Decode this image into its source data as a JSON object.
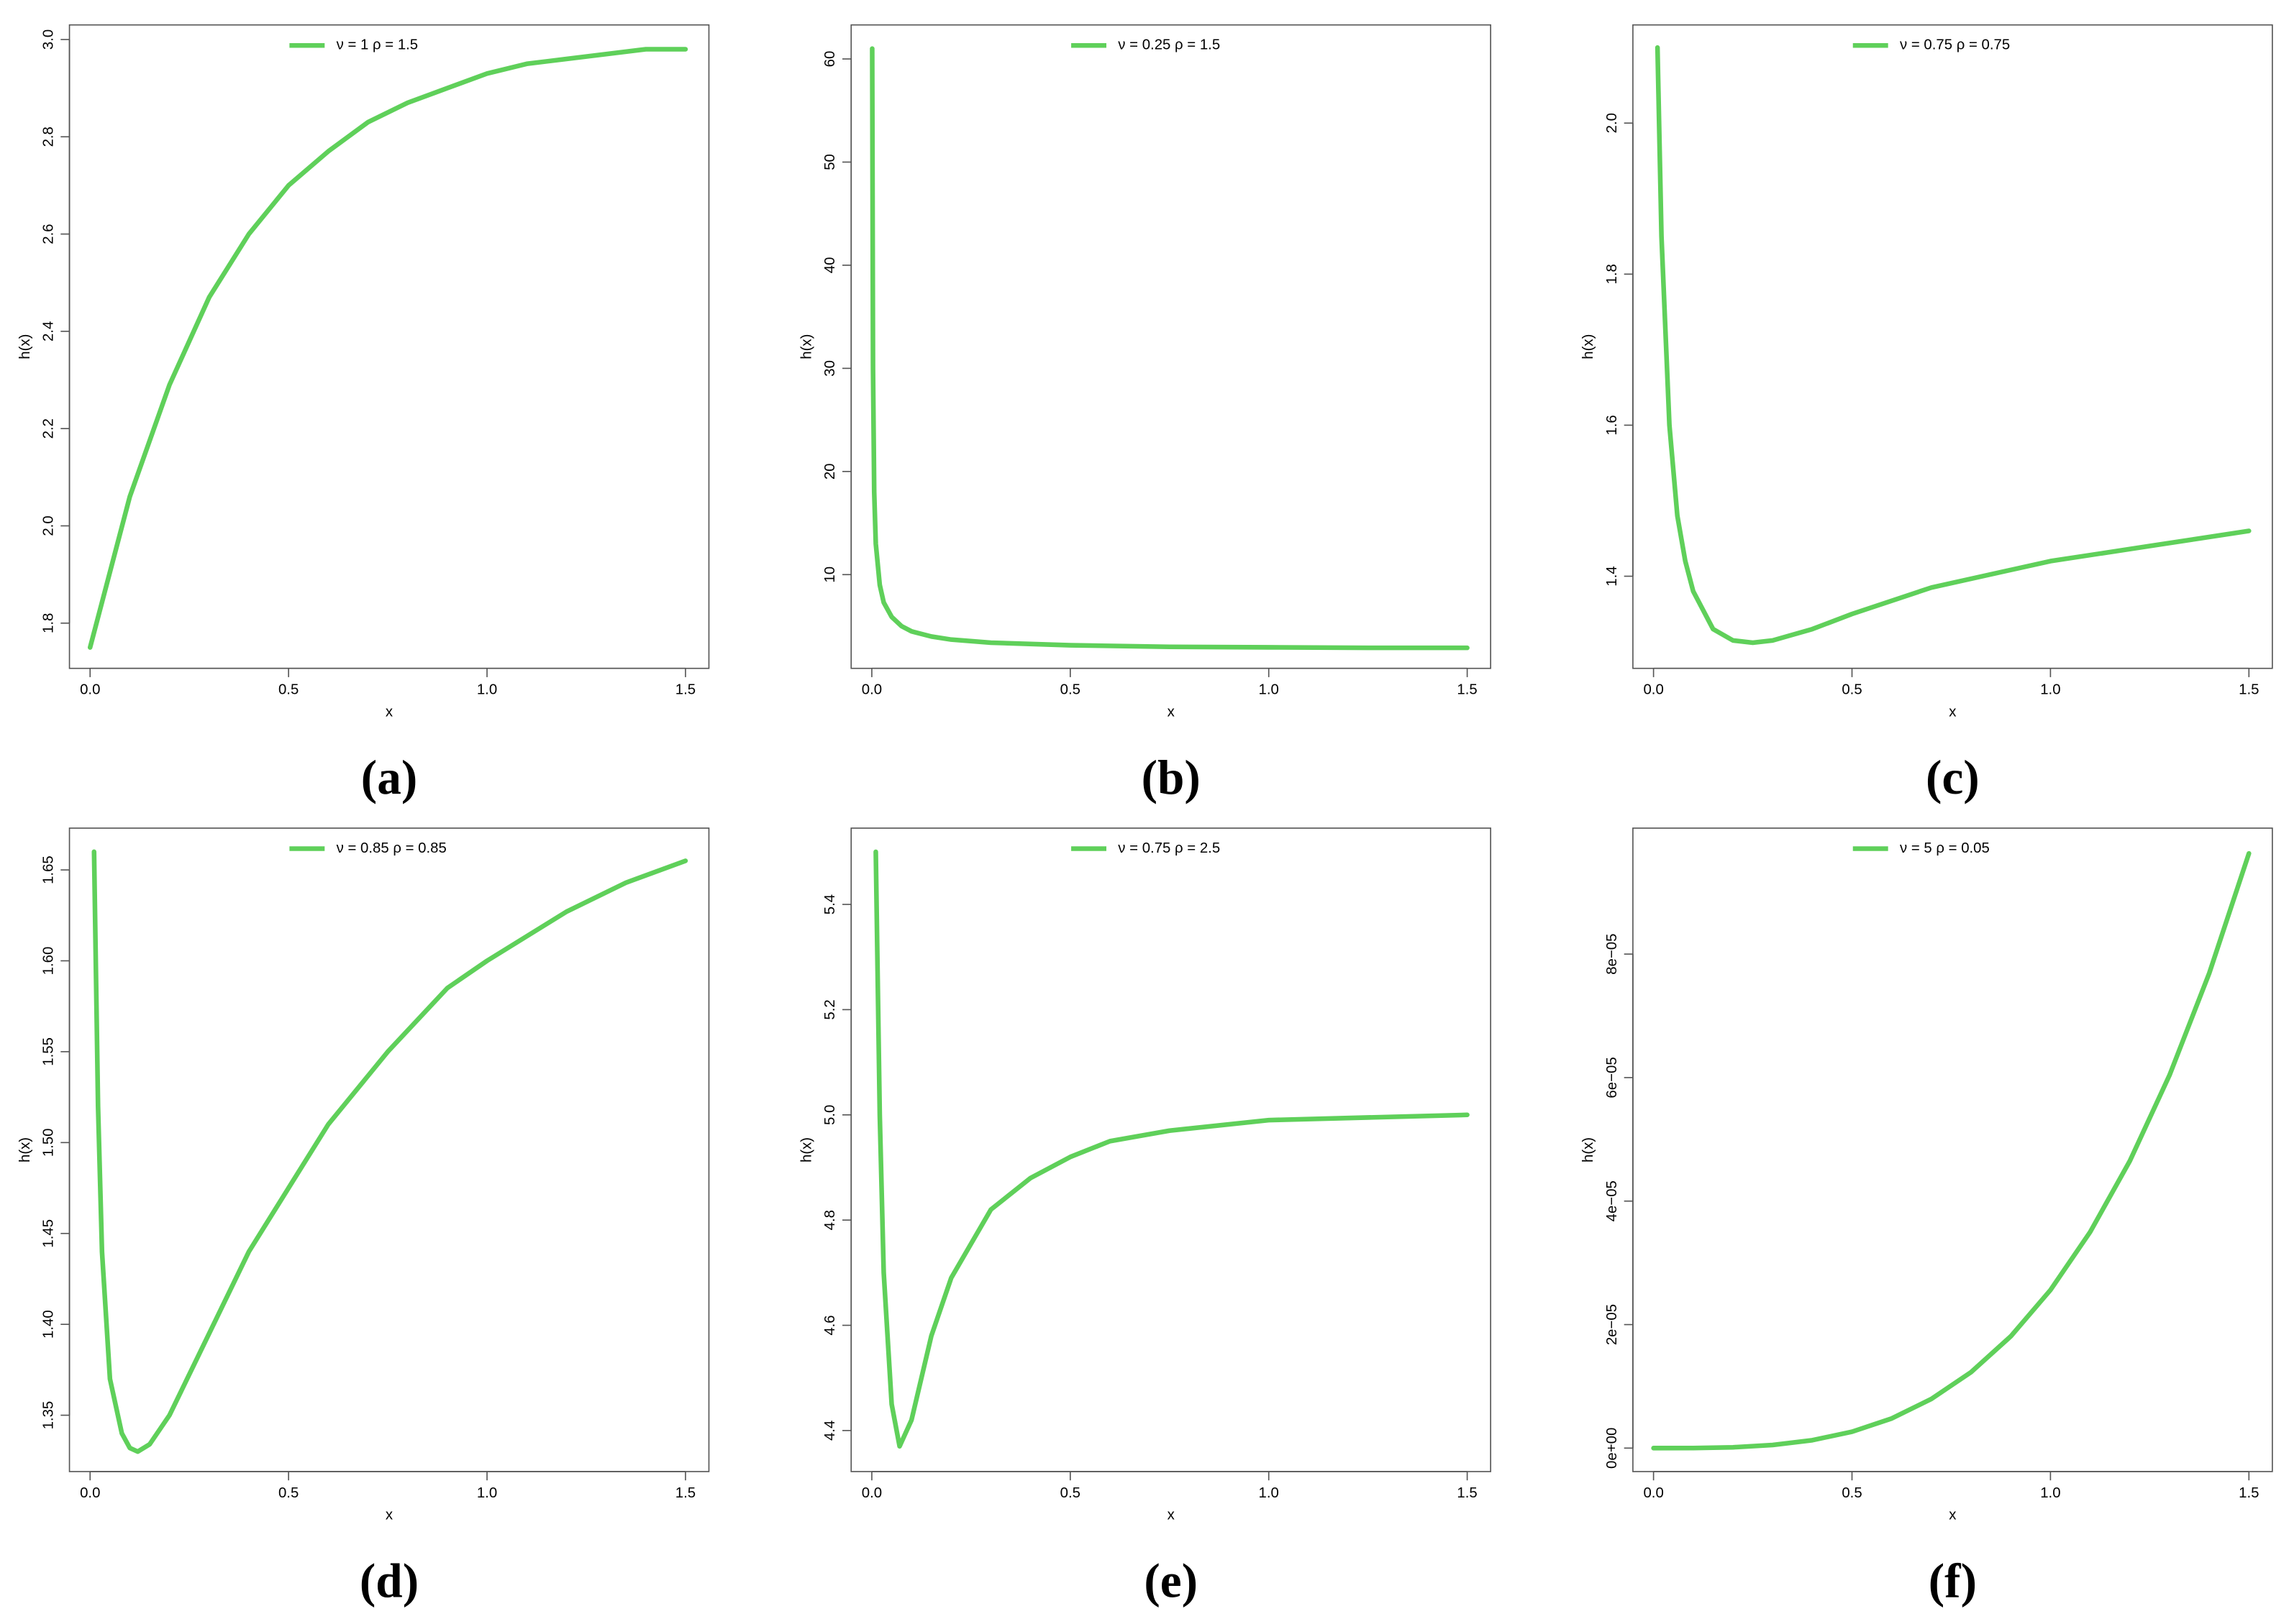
{
  "chart_data": [
    {
      "type": "line",
      "panel_label": "(a)",
      "xlabel": "x",
      "ylabel": "h(x)",
      "x": [
        0,
        0.1,
        0.2,
        0.3,
        0.4,
        0.5,
        0.6,
        0.7,
        0.8,
        0.9,
        1.0,
        1.1,
        1.2,
        1.3,
        1.4,
        1.5
      ],
      "series": [
        {
          "name": "ν = 1  ρ = 1.5",
          "color": "#5fd05a",
          "values": [
            1.75,
            2.06,
            2.29,
            2.47,
            2.6,
            2.7,
            2.77,
            2.83,
            2.87,
            2.9,
            2.93,
            2.95,
            2.96,
            2.97,
            2.98,
            2.98
          ]
        }
      ],
      "xlim": [
        -0.052,
        1.559
      ],
      "ylim": [
        1.707,
        3.03
      ],
      "xticks": [
        {
          "value": 0,
          "label": "0.0"
        },
        0.5,
        {
          "value": 1,
          "label": "1.0"
        },
        1.5
      ],
      "yticks": [
        1.8,
        {
          "value": 2,
          "label": "2.0"
        },
        2.2,
        2.4,
        2.6,
        2.8,
        {
          "value": 3,
          "label": "3.0"
        }
      ]
    },
    {
      "type": "line",
      "panel_label": "(b)",
      "xlabel": "x",
      "ylabel": "h(x)",
      "x": [
        0.001,
        0.003,
        0.006,
        0.01,
        0.02,
        0.03,
        0.05,
        0.075,
        0.1,
        0.15,
        0.2,
        0.3,
        0.5,
        0.75,
        1.0,
        1.25,
        1.5
      ],
      "series": [
        {
          "name": "ν = 0.25  ρ = 1.5",
          "color": "#5fd05a",
          "values": [
            61,
            30,
            18,
            13,
            9,
            7.3,
            5.9,
            5.0,
            4.5,
            4.0,
            3.7,
            3.4,
            3.15,
            3.0,
            2.95,
            2.9,
            2.9
          ]
        }
      ],
      "xlim": [
        -0.052,
        1.559
      ],
      "ylim": [
        0.91,
        63.3
      ],
      "xticks": [
        {
          "value": 0,
          "label": "0.0"
        },
        0.5,
        {
          "value": 1,
          "label": "1.0"
        },
        1.5
      ],
      "yticks": [
        10,
        20,
        30,
        40,
        50,
        60
      ]
    },
    {
      "type": "line",
      "panel_label": "(c)",
      "xlabel": "x",
      "ylabel": "h(x)",
      "x": [
        0.01,
        0.02,
        0.04,
        0.06,
        0.08,
        0.1,
        0.15,
        0.2,
        0.25,
        0.3,
        0.4,
        0.5,
        0.7,
        1.0,
        1.25,
        1.5
      ],
      "series": [
        {
          "name": "ν = 0.75  ρ = 0.75",
          "color": "#5fd05a",
          "values": [
            2.1,
            1.85,
            1.6,
            1.48,
            1.42,
            1.38,
            1.33,
            1.315,
            1.312,
            1.315,
            1.33,
            1.35,
            1.385,
            1.42,
            1.44,
            1.46
          ]
        }
      ],
      "xlim": [
        -0.052,
        1.559
      ],
      "ylim": [
        1.278,
        2.13
      ],
      "xticks": [
        {
          "value": 0,
          "label": "0.0"
        },
        0.5,
        {
          "value": 1,
          "label": "1.0"
        },
        1.5
      ],
      "yticks": [
        1.4,
        1.6,
        1.8,
        {
          "value": 2,
          "label": "2.0"
        }
      ]
    },
    {
      "type": "line",
      "panel_label": "(d)",
      "xlabel": "x",
      "ylabel": "h(x)",
      "x": [
        0.01,
        0.02,
        0.03,
        0.05,
        0.08,
        0.1,
        0.12,
        0.15,
        0.2,
        0.3,
        0.4,
        0.5,
        0.6,
        0.75,
        0.9,
        1.0,
        1.2,
        1.35,
        1.5
      ],
      "series": [
        {
          "name": "ν = 0.85  ρ = 0.85",
          "color": "#5fd05a",
          "values": [
            1.66,
            1.52,
            1.44,
            1.37,
            1.34,
            1.332,
            1.33,
            1.334,
            1.35,
            1.395,
            1.44,
            1.475,
            1.51,
            1.55,
            1.585,
            1.6,
            1.627,
            1.643,
            1.655
          ]
        }
      ],
      "xlim": [
        -0.052,
        1.559
      ],
      "ylim": [
        1.319,
        1.673
      ],
      "xticks": [
        {
          "value": 0,
          "label": "0.0"
        },
        0.5,
        {
          "value": 1,
          "label": "1.0"
        },
        1.5
      ],
      "yticks": [
        1.35,
        {
          "value": 1.4,
          "label": "1.40"
        },
        1.45,
        {
          "value": 1.5,
          "label": "1.50"
        },
        1.55,
        {
          "value": 1.6,
          "label": "1.60"
        },
        1.65
      ]
    },
    {
      "type": "line",
      "panel_label": "(e)",
      "xlabel": "x",
      "ylabel": "h(x)",
      "x": [
        0.01,
        0.02,
        0.03,
        0.05,
        0.07,
        0.1,
        0.15,
        0.2,
        0.3,
        0.4,
        0.5,
        0.6,
        0.75,
        1.0,
        1.25,
        1.5
      ],
      "series": [
        {
          "name": "ν = 0.75  ρ = 2.5",
          "color": "#5fd05a",
          "values": [
            5.5,
            5.0,
            4.7,
            4.45,
            4.37,
            4.42,
            4.58,
            4.69,
            4.82,
            4.88,
            4.92,
            4.95,
            4.97,
            4.99,
            4.995,
            5.0
          ]
        }
      ],
      "xlim": [
        -0.052,
        1.559
      ],
      "ylim": [
        4.322,
        5.545
      ],
      "xticks": [
        {
          "value": 0,
          "label": "0.0"
        },
        0.5,
        {
          "value": 1,
          "label": "1.0"
        },
        1.5
      ],
      "yticks": [
        4.4,
        4.6,
        4.8,
        {
          "value": 5,
          "label": "5.0"
        },
        5.2,
        5.4
      ]
    },
    {
      "type": "line",
      "panel_label": "(f)",
      "xlabel": "x",
      "ylabel": "h(x)",
      "x": [
        0,
        0.1,
        0.2,
        0.3,
        0.4,
        0.5,
        0.6,
        0.7,
        0.8,
        0.9,
        1.0,
        1.1,
        1.2,
        1.3,
        1.4,
        1.5
      ],
      "series": [
        {
          "name": "ν = 5  ρ = 0.05",
          "color": "#5fd05a",
          "values": [
            0,
            1.4e-08,
            1.3e-07,
            5e-07,
            1.28e-06,
            2.65e-06,
            4.8e-06,
            7.96e-06,
            1.23e-05,
            1.81e-05,
            2.56e-05,
            3.5e-05,
            4.65e-05,
            6.04e-05,
            7.69e-05,
            9.63e-05
          ]
        }
      ],
      "xlim": [
        -0.052,
        1.559
      ],
      "ylim": [
        -3.8e-06,
        0.0001004
      ],
      "xticks": [
        {
          "value": 0,
          "label": "0.0"
        },
        0.5,
        {
          "value": 1,
          "label": "1.0"
        },
        1.5
      ],
      "yticks": [
        {
          "value": 0,
          "label": "0e+00"
        },
        {
          "value": 2e-05,
          "label": "2e−05"
        },
        {
          "value": 4e-05,
          "label": "4e−05"
        },
        {
          "value": 6e-05,
          "label": "6e−05"
        },
        {
          "value": 8e-05,
          "label": "8e−05"
        }
      ]
    }
  ]
}
